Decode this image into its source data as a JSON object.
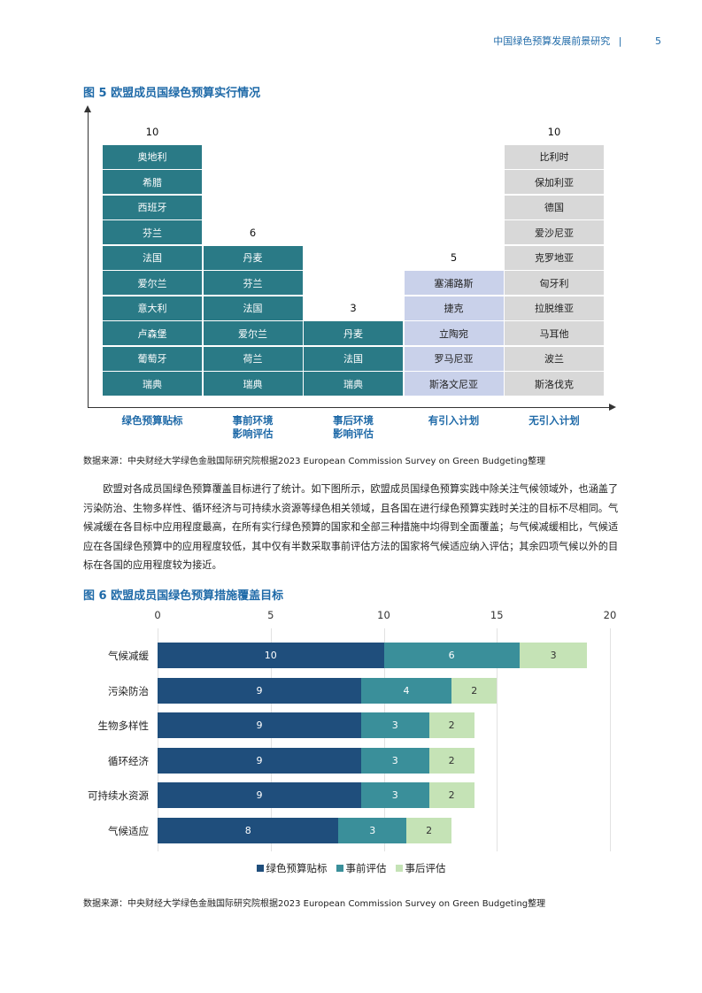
{
  "header": {
    "title": "中国绿色预算发展前景研究",
    "sep": "|",
    "page": "5"
  },
  "fig5": {
    "title": "图 5 欧盟成员国绿色预算实行情况",
    "source": "数据来源：中央财经大学绿色金融国际研究院根据2023 European Commission Survey on Green Budgeting整理",
    "columns": [
      {
        "category": [
          "绿色预算贴标"
        ],
        "count": "10",
        "fill": "#2a7a86",
        "text": "#ffffff",
        "countries": [
          "奥地利",
          "希腊",
          "西班牙",
          "芬兰",
          "法国",
          "爱尔兰",
          "意大利",
          "卢森堡",
          "葡萄牙",
          "瑞典"
        ]
      },
      {
        "category": [
          "事前环境",
          "影响评估"
        ],
        "count": "6",
        "fill": "#2a7a86",
        "text": "#ffffff",
        "countries": [
          "丹麦",
          "芬兰",
          "法国",
          "爱尔兰",
          "荷兰",
          "瑞典"
        ]
      },
      {
        "category": [
          "事后环境",
          "影响评估"
        ],
        "count": "3",
        "fill": "#2a7a86",
        "text": "#ffffff",
        "countries": [
          "丹麦",
          "法国",
          "瑞典"
        ]
      },
      {
        "category": [
          "有引入计划"
        ],
        "count": "5",
        "fill": "#c9d1ea",
        "text": "#222222",
        "countries": [
          "塞浦路斯",
          "捷克",
          "立陶宛",
          "罗马尼亚",
          "斯洛文尼亚"
        ]
      },
      {
        "category": [
          "无引入计划"
        ],
        "count": "10",
        "fill": "#d8d8d8",
        "text": "#222222",
        "countries": [
          "比利时",
          "保加利亚",
          "德国",
          "爱沙尼亚",
          "克罗地亚",
          "匈牙利",
          "拉脱维亚",
          "马耳他",
          "波兰",
          "斯洛伐克"
        ]
      }
    ]
  },
  "paragraph": "欧盟对各成员国绿色预算覆盖目标进行了统计。如下图所示，欧盟成员国绿色预算实践中除关注气候领域外，也涵盖了污染防治、生物多样性、循环经济与可持续水资源等绿色相关领域，且各国在进行绿色预算实践时关注的目标不尽相同。气候减缓在各目标中应用程度最高，在所有实行绿色预算的国家和全部三种措施中均得到全面覆盖；与气候减缓相比，气候适应在各国绿色预算中的应用程度较低，其中仅有半数采取事前评估方法的国家将气候适应纳入评估；其余四项气候以外的目标在各国的应用程度较为接近。",
  "fig6": {
    "title": "图 6 欧盟成员国绿色预算措施覆盖目标",
    "source": "数据来源：中央财经大学绿色金融国际研究院根据2023 European Commission Survey on Green Budgeting整理"
  },
  "chart_data": {
    "type": "bar",
    "orientation": "horizontal",
    "stacked": true,
    "categories": [
      "气候减缓",
      "污染防治",
      "生物多样性",
      "循环经济",
      "可持续水资源",
      "气候适应"
    ],
    "series": [
      {
        "name": "绿色预算贴标",
        "values": [
          10,
          9,
          9,
          9,
          9,
          8
        ],
        "color": "#1f4e7c",
        "label_color": "#ffffff"
      },
      {
        "name": "事前评估",
        "values": [
          6,
          4,
          3,
          3,
          3,
          3
        ],
        "color": "#3a8f9a",
        "label_color": "#ffffff"
      },
      {
        "name": "事后评估",
        "values": [
          3,
          2,
          2,
          2,
          2,
          2
        ],
        "color": "#c5e3b6",
        "label_color": "#333333"
      }
    ],
    "xlim": [
      0,
      20
    ],
    "xticks": [
      "0",
      "5",
      "10",
      "15",
      "20"
    ],
    "grid": true,
    "legend_position": "bottom",
    "title": "",
    "xlabel": "",
    "ylabel": ""
  }
}
